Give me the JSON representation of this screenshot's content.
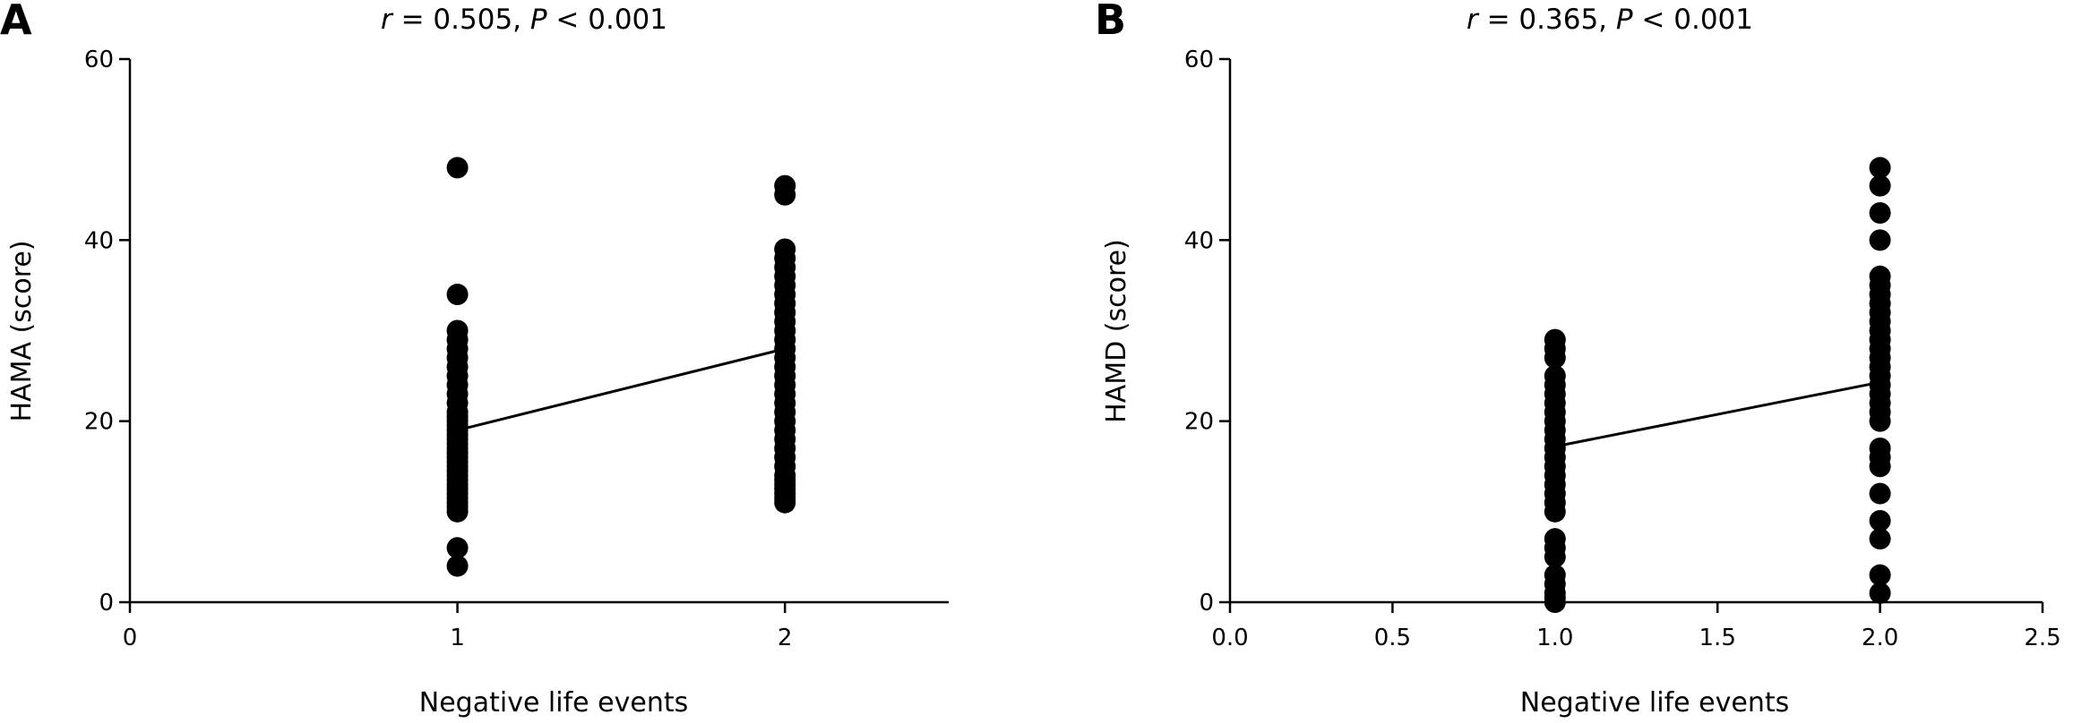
{
  "chart_data": [
    {
      "type": "scatter",
      "panel": "A",
      "title": "r = 0.505, P < 0.001",
      "title_r": "r",
      "title_r_value": " = 0.505, ",
      "title_p": "P",
      "title_p_value": " < 0.001",
      "xlabel": "Negative life events",
      "ylabel": "HAMA (score)",
      "xlim": [
        0,
        2.5
      ],
      "ylim": [
        0,
        60
      ],
      "xticks": [
        0,
        1,
        2
      ],
      "xtick_labels": [
        "0",
        "1",
        "2"
      ],
      "yticks": [
        0,
        20,
        40,
        60
      ],
      "ytick_labels": [
        "0",
        "20",
        "40",
        "60"
      ],
      "series": [
        {
          "x": [
            1,
            1,
            1,
            1,
            1,
            1,
            1,
            1,
            1,
            1,
            1,
            1,
            1,
            1,
            1,
            1,
            1,
            1,
            1,
            1,
            1,
            1,
            1,
            1,
            1,
            1,
            1,
            1,
            1,
            1,
            1,
            1,
            1,
            1,
            1,
            1,
            2,
            2,
            2,
            2,
            2,
            2,
            2,
            2,
            2,
            2,
            2,
            2,
            2,
            2,
            2,
            2,
            2,
            2,
            2,
            2,
            2,
            2,
            2,
            2,
            2,
            2,
            2,
            2,
            2,
            2,
            2,
            2,
            2,
            2
          ],
          "y": [
            4,
            6,
            10,
            11,
            12,
            13,
            14,
            15,
            16,
            17,
            18,
            19,
            20,
            21,
            22,
            23,
            24,
            25,
            26,
            27,
            28,
            29,
            30,
            34,
            48,
            10.5,
            11.5,
            12.5,
            13.5,
            14.5,
            15.5,
            16.5,
            17.5,
            18.5,
            19.5,
            20.5,
            11,
            12,
            13,
            14,
            15,
            16,
            17,
            18,
            19,
            20,
            21,
            22,
            23,
            24,
            25,
            26,
            27,
            28,
            29,
            30,
            31,
            32,
            33,
            34,
            35,
            36,
            37,
            38,
            39,
            45,
            46,
            11.5,
            12.5,
            13.5
          ]
        }
      ],
      "fit_line": {
        "x": [
          1,
          2
        ],
        "y": [
          19,
          28
        ]
      }
    },
    {
      "type": "scatter",
      "panel": "B",
      "title": "r = 0.365, P < 0.001",
      "title_r": "r",
      "title_r_value": " = 0.365, ",
      "title_p": "P",
      "title_p_value": " < 0.001",
      "xlabel": "Negative life events",
      "ylabel": "HAMD (score)",
      "xlim": [
        0,
        2.5
      ],
      "ylim": [
        0,
        60
      ],
      "xticks": [
        0,
        0.5,
        1,
        1.5,
        2,
        2.5
      ],
      "xtick_labels": [
        "0.0",
        "0.5",
        "1.0",
        "1.5",
        "2.0",
        "2.5"
      ],
      "yticks": [
        0,
        20,
        40,
        60
      ],
      "ytick_labels": [
        "0",
        "20",
        "40",
        "60"
      ],
      "series": [
        {
          "x": [
            1,
            1,
            1,
            1,
            1,
            1,
            1,
            1,
            1,
            1,
            1,
            1,
            1,
            1,
            1,
            1,
            1,
            1,
            1,
            1,
            1,
            1,
            1,
            1,
            1,
            1,
            1,
            2,
            2,
            2,
            2,
            2,
            2,
            2,
            2,
            2,
            2,
            2,
            2,
            2,
            2,
            2,
            2,
            2,
            2,
            2,
            2,
            2,
            2,
            2,
            2,
            2,
            2,
            2,
            2,
            2
          ],
          "y": [
            0,
            0.5,
            1,
            2,
            3,
            5,
            6,
            7,
            10,
            11,
            12,
            13,
            14,
            15,
            16,
            17,
            18,
            19,
            20,
            21,
            22,
            23,
            24,
            25,
            27,
            28,
            29,
            1,
            3,
            7,
            9,
            12,
            15,
            16,
            17,
            20,
            21,
            22,
            23,
            24,
            25,
            26,
            27,
            28,
            29,
            30,
            31,
            32,
            33,
            34,
            35,
            36,
            40,
            43,
            46,
            48
          ]
        }
      ],
      "fit_line": {
        "x": [
          1,
          2
        ],
        "y": [
          17.2,
          24.3
        ]
      }
    }
  ]
}
